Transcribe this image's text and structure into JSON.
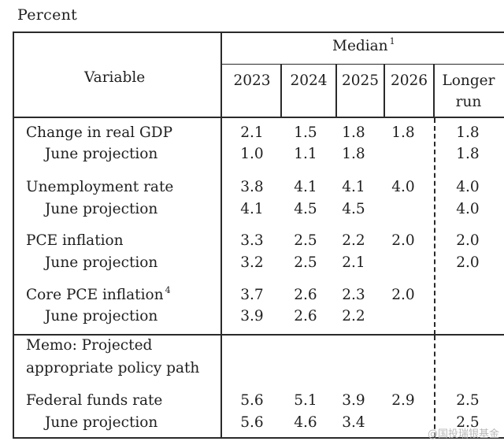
{
  "unit_label": "Percent",
  "header": {
    "variable": "Variable",
    "median": "Median",
    "median_footnote": "1",
    "years": [
      "2023",
      "2024",
      "2025",
      "2026"
    ],
    "longer_run": [
      "Longer",
      "run"
    ]
  },
  "rows": [
    {
      "label": "Change in real GDP",
      "values": [
        "2.1",
        "1.5",
        "1.8",
        "1.8",
        "1.8"
      ]
    },
    {
      "label": "June projection",
      "values": [
        "1.0",
        "1.1",
        "1.8",
        "",
        "1.8"
      ]
    },
    {
      "label": "Unemployment rate",
      "values": [
        "3.8",
        "4.1",
        "4.1",
        "4.0",
        "4.0"
      ]
    },
    {
      "label": "June projection",
      "values": [
        "4.1",
        "4.5",
        "4.5",
        "",
        "4.0"
      ]
    },
    {
      "label": "PCE inflation",
      "values": [
        "3.3",
        "2.5",
        "2.2",
        "2.0",
        "2.0"
      ]
    },
    {
      "label": "June projection",
      "values": [
        "3.2",
        "2.5",
        "2.1",
        "",
        "2.0"
      ]
    },
    {
      "label": "Core PCE inflation",
      "footnote": "4",
      "values": [
        "3.7",
        "2.6",
        "2.3",
        "2.0",
        ""
      ]
    },
    {
      "label": "June projection",
      "values": [
        "3.9",
        "2.6",
        "2.2",
        "",
        ""
      ]
    }
  ],
  "memo": [
    "Memo: Projected",
    "appropriate policy path"
  ],
  "policy_rows": [
    {
      "label": "Federal funds rate",
      "values": [
        "5.6",
        "5.1",
        "3.9",
        "2.9",
        "2.5"
      ]
    },
    {
      "label": "June projection",
      "values": [
        "5.6",
        "4.6",
        "3.4",
        "",
        "2.5"
      ]
    }
  ],
  "watermark": "@国投瑞银基金"
}
